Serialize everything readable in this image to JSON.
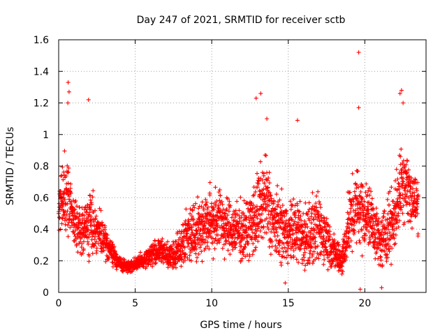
{
  "chart_data": {
    "type": "scatter",
    "title": "Day 247 of 2021, SRMTID for receiver sctb",
    "xlabel": "GPS time / hours",
    "ylabel": "SRMTID / TECUs",
    "xlim": [
      0,
      24
    ],
    "ylim": [
      0,
      1.6
    ],
    "x_ticks": [
      0,
      5,
      10,
      15,
      20
    ],
    "x_tick_labels": [
      "0",
      "5",
      "10",
      "15",
      "20"
    ],
    "y_ticks": [
      0,
      0.2,
      0.4,
      0.6,
      0.8,
      1,
      1.2,
      1.4,
      1.6
    ],
    "y_tick_labels": [
      "0",
      "0.2",
      "0.4",
      "0.6",
      "0.8",
      "1",
      "1.2",
      "1.4",
      "1.6"
    ],
    "grid": true,
    "marker": "+",
    "color": "#ff0000",
    "series": [
      {
        "name": "SRMTID",
        "sample_spacing_hours": 0.25,
        "approximate_trend": {
          "x": [
            0,
            0.5,
            1,
            1.5,
            2,
            2.5,
            3,
            3.5,
            4,
            4.5,
            5,
            5.5,
            6,
            6.5,
            7,
            7.5,
            8,
            8.5,
            9,
            9.5,
            10,
            10.5,
            11,
            11.5,
            12,
            12.5,
            13,
            13.5,
            14,
            14.5,
            15,
            15.5,
            16,
            16.5,
            17,
            17.5,
            18,
            18.5,
            19,
            19.5,
            20,
            20.5,
            21,
            21.5,
            22,
            22.5,
            23,
            23.5
          ],
          "y": [
            0.55,
            0.6,
            0.45,
            0.38,
            0.45,
            0.4,
            0.32,
            0.25,
            0.18,
            0.16,
            0.18,
            0.2,
            0.24,
            0.26,
            0.25,
            0.22,
            0.3,
            0.38,
            0.4,
            0.42,
            0.45,
            0.48,
            0.4,
            0.4,
            0.38,
            0.42,
            0.5,
            0.6,
            0.45,
            0.4,
            0.38,
            0.4,
            0.35,
            0.38,
            0.4,
            0.35,
            0.25,
            0.2,
            0.45,
            0.55,
            0.5,
            0.45,
            0.3,
            0.4,
            0.5,
            0.75,
            0.6,
            0.55
          ]
        },
        "spread": {
          "x": [
            0,
            0.5,
            1,
            1.5,
            2,
            2.5,
            3,
            3.5,
            4,
            4.5,
            5,
            5.5,
            6,
            6.5,
            7,
            7.5,
            8,
            8.5,
            9,
            9.5,
            10,
            10.5,
            11,
            11.5,
            12,
            12.5,
            13,
            13.5,
            14,
            14.5,
            15,
            15.5,
            16,
            16.5,
            17,
            17.5,
            18,
            18.5,
            19,
            19.5,
            20,
            20.5,
            21,
            21.5,
            22,
            22.5,
            23,
            23.5
          ],
          "y": [
            0.2,
            0.4,
            0.25,
            0.2,
            0.3,
            0.2,
            0.15,
            0.1,
            0.06,
            0.05,
            0.06,
            0.07,
            0.1,
            0.12,
            0.12,
            0.12,
            0.2,
            0.25,
            0.25,
            0.25,
            0.3,
            0.3,
            0.25,
            0.25,
            0.25,
            0.28,
            0.35,
            0.45,
            0.3,
            0.3,
            0.25,
            0.3,
            0.3,
            0.3,
            0.3,
            0.25,
            0.15,
            0.15,
            0.3,
            0.35,
            0.3,
            0.3,
            0.2,
            0.3,
            0.3,
            0.4,
            0.3,
            0.25
          ]
        },
        "outliers": [
          {
            "x": 0.62,
            "y": 1.33
          },
          {
            "x": 0.68,
            "y": 1.27
          },
          {
            "x": 0.6,
            "y": 1.2
          },
          {
            "x": 1.95,
            "y": 1.22
          },
          {
            "x": 12.9,
            "y": 1.23
          },
          {
            "x": 13.2,
            "y": 1.26
          },
          {
            "x": 13.6,
            "y": 1.1
          },
          {
            "x": 15.6,
            "y": 1.09
          },
          {
            "x": 19.6,
            "y": 1.52
          },
          {
            "x": 19.6,
            "y": 1.17
          },
          {
            "x": 22.3,
            "y": 1.26
          },
          {
            "x": 22.4,
            "y": 1.28
          },
          {
            "x": 22.5,
            "y": 1.2
          },
          {
            "x": 19.7,
            "y": 0.02
          },
          {
            "x": 21.1,
            "y": 0.03
          },
          {
            "x": 14.8,
            "y": 0.06
          }
        ]
      }
    ]
  }
}
